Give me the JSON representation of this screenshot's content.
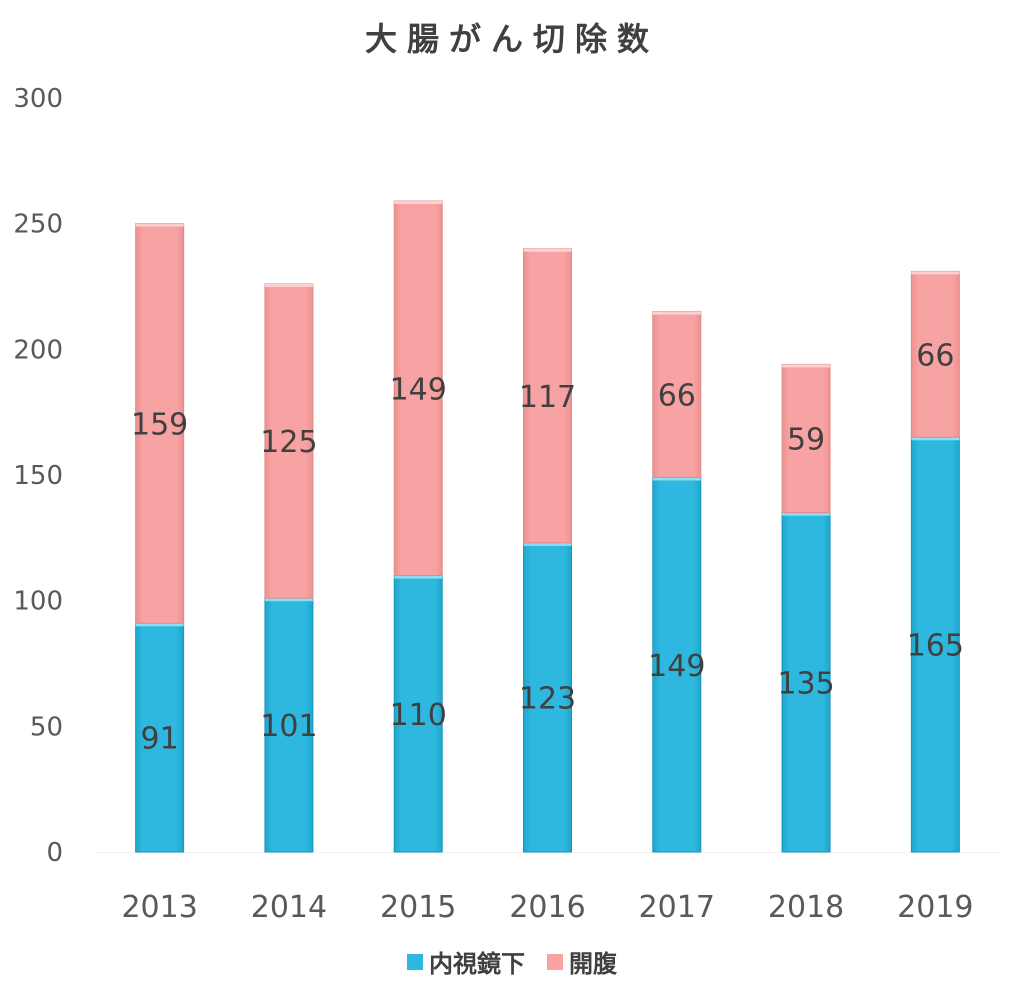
{
  "chart_data": {
    "type": "bar",
    "stacked": true,
    "title": "大腸がん切除数",
    "categories": [
      "2013",
      "2014",
      "2015",
      "2016",
      "2017",
      "2018",
      "2019"
    ],
    "series": [
      {
        "name": "内視鏡下",
        "color": "#2EB8DF",
        "values": [
          91,
          101,
          110,
          123,
          149,
          135,
          165
        ]
      },
      {
        "name": "開腹",
        "color": "#F8A3A3",
        "values": [
          159,
          125,
          149,
          117,
          66,
          59,
          66
        ]
      }
    ],
    "ylim": [
      0,
      300
    ],
    "yticks": [
      0,
      50,
      100,
      150,
      200,
      250,
      300
    ],
    "grid": false,
    "legend_position": "bottom"
  }
}
